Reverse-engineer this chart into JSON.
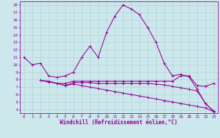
{
  "title": "",
  "xlabel": "Windchill (Refroidissement éolien,°C)",
  "ylabel": "",
  "xlim": [
    -0.5,
    23.5
  ],
  "ylim": [
    3.5,
    18.5
  ],
  "yticks": [
    4,
    5,
    6,
    7,
    8,
    9,
    10,
    11,
    12,
    13,
    14,
    15,
    16,
    17,
    18
  ],
  "xticks": [
    0,
    1,
    2,
    3,
    4,
    5,
    6,
    7,
    8,
    9,
    10,
    11,
    12,
    13,
    14,
    15,
    16,
    17,
    18,
    19,
    20,
    21,
    22,
    23
  ],
  "bg_color": "#cce8ec",
  "line_color": "#990099",
  "grid_color": "#aacccc",
  "line1_x": [
    0,
    1,
    2,
    3,
    4,
    5,
    6,
    7,
    8,
    9,
    10,
    11,
    12,
    13,
    14,
    15,
    16,
    17,
    18,
    19,
    20,
    21,
    22,
    23
  ],
  "line1_y": [
    11.0,
    10.0,
    10.2,
    8.5,
    8.3,
    8.5,
    9.0,
    11.0,
    12.5,
    11.0,
    14.3,
    16.5,
    18.0,
    17.5,
    16.7,
    15.0,
    13.0,
    10.2,
    8.5,
    8.7,
    8.4,
    6.7,
    4.8,
    3.7
  ],
  "line2_x": [
    2,
    3,
    4,
    5,
    6,
    7,
    8,
    9,
    10,
    11,
    12,
    13,
    14,
    15,
    16,
    17,
    18,
    19,
    20,
    21,
    22,
    23
  ],
  "line2_y": [
    7.9,
    7.7,
    7.5,
    7.5,
    7.8,
    7.8,
    7.8,
    7.8,
    7.8,
    7.8,
    7.8,
    7.8,
    7.8,
    7.8,
    7.8,
    7.8,
    7.8,
    8.5,
    8.5,
    7.2,
    7.1,
    7.5
  ],
  "line3_x": [
    2,
    3,
    4,
    5,
    6,
    7,
    8,
    9,
    10,
    11,
    12,
    13,
    14,
    15,
    16,
    17,
    18,
    19,
    20,
    21,
    22,
    23
  ],
  "line3_y": [
    7.9,
    7.7,
    7.5,
    7.2,
    7.6,
    7.6,
    7.6,
    7.5,
    7.5,
    7.5,
    7.5,
    7.5,
    7.5,
    7.5,
    7.4,
    7.3,
    7.1,
    6.9,
    6.7,
    6.5,
    4.8,
    3.8
  ],
  "line4_x": [
    2,
    3,
    4,
    5,
    6,
    7,
    8,
    9,
    10,
    11,
    12,
    13,
    14,
    15,
    16,
    17,
    18,
    19,
    20,
    21,
    22,
    23
  ],
  "line4_y": [
    7.9,
    7.8,
    7.5,
    7.2,
    7.4,
    7.2,
    7.0,
    6.8,
    6.6,
    6.4,
    6.2,
    6.0,
    5.8,
    5.6,
    5.4,
    5.2,
    5.0,
    4.8,
    4.6,
    4.4,
    4.2,
    3.7
  ],
  "marker_size": 2.5,
  "line_width": 0.8,
  "tick_fontsize": 4.5,
  "xlabel_fontsize": 5.5
}
